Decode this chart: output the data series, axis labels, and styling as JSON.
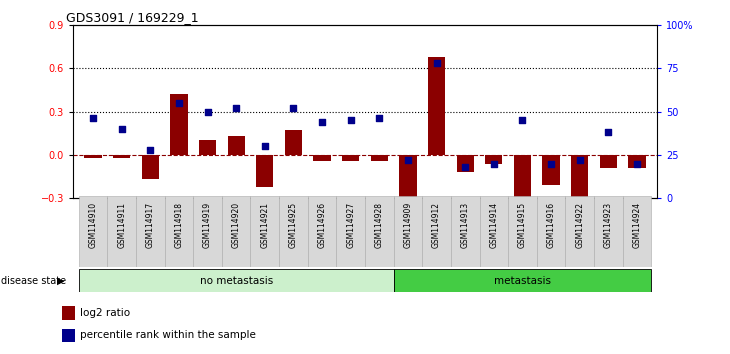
{
  "title": "GDS3091 / 169229_1",
  "samples": [
    "GSM114910",
    "GSM114911",
    "GSM114917",
    "GSM114918",
    "GSM114919",
    "GSM114920",
    "GSM114921",
    "GSM114925",
    "GSM114926",
    "GSM114927",
    "GSM114928",
    "GSM114909",
    "GSM114912",
    "GSM114913",
    "GSM114914",
    "GSM114915",
    "GSM114916",
    "GSM114922",
    "GSM114923",
    "GSM114924"
  ],
  "log2_ratio": [
    -0.02,
    -0.02,
    -0.17,
    0.42,
    0.1,
    0.13,
    -0.22,
    0.17,
    -0.04,
    -0.04,
    -0.04,
    -0.32,
    0.68,
    -0.12,
    -0.06,
    -0.3,
    -0.21,
    -0.4,
    -0.09,
    -0.09
  ],
  "percentile_rank": [
    46,
    40,
    28,
    55,
    50,
    52,
    30,
    52,
    44,
    45,
    46,
    22,
    78,
    18,
    20,
    45,
    20,
    22,
    38,
    20
  ],
  "no_metastasis_count": 11,
  "metastasis_count": 9,
  "bar_color": "#8B0000",
  "dot_color": "#00008B",
  "dashed_line_color": "#8B0000",
  "dotted_line_color": "#000000",
  "bg_color": "#FFFFFF",
  "ylim_left": [
    -0.3,
    0.9
  ],
  "yticks_left": [
    -0.3,
    0.0,
    0.3,
    0.6,
    0.9
  ],
  "yticks_right": [
    0,
    25,
    50,
    75,
    100
  ],
  "ytick_labels_right": [
    "0",
    "25",
    "50",
    "75",
    "100%"
  ],
  "no_metastasis_color": "#ccf0cc",
  "metastasis_color": "#44cc44",
  "bar_width": 0.6
}
